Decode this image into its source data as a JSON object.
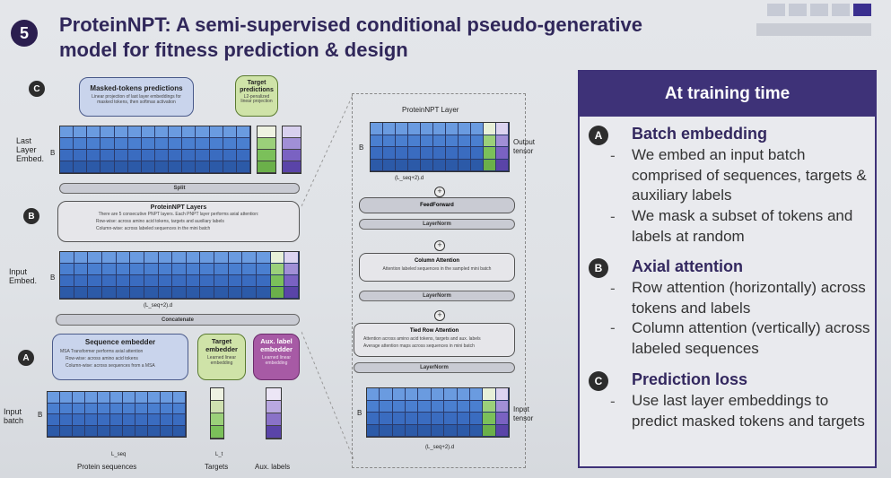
{
  "slide": {
    "number": "5",
    "title_line1": "ProteinNPT: A semi-supervised conditional pseudo-generative",
    "title_line2": "model for fitness prediction & design"
  },
  "panel": {
    "header": "At training time",
    "sections": [
      {
        "badge": "A",
        "title": "Batch embedding",
        "bullets": [
          "We embed an input batch comprised of sequences, targets & auxiliary labels",
          "We mask a subset of tokens and labels at random"
        ]
      },
      {
        "badge": "B",
        "title": "Axial attention",
        "bullets": [
          "Row attention (horizontally) across tokens and labels",
          "Column attention (vertically) across labeled sequences"
        ]
      },
      {
        "badge": "C",
        "title": "Prediction loss",
        "bullets": [
          "Use last layer embeddings to predict masked tokens and targets"
        ]
      }
    ]
  },
  "diagram": {
    "badge_c": "C",
    "badge_b": "B",
    "badge_a": "A",
    "masked_title": "Masked-tokens predictions",
    "masked_desc": "Linear projection of last layer embeddings for masked tokens, then softmax activation",
    "target_pred_title": "Target predictions",
    "target_pred_desc": "L2-penalized linear projection",
    "last_layer_label": "Last Layer Embed.",
    "split": "Split",
    "layers_title": "ProteinNPT Layers",
    "layers_desc": "There are 5 consecutive PNPT layers. Each PNPT layer performs axial attention:",
    "layers_row": "Row-wise: across amino acid tokens, targets and auxiliary labels",
    "layers_col": "Column-wise: across labeled sequences in the mini batch",
    "input_embed_label": "Input Embed.",
    "dim_label": "(L_seq+2).d",
    "concatenate": "Concatenate",
    "seq_embedder_title": "Sequence embedder",
    "seq_embedder_desc": "MSA Transformer performs axial attention",
    "seq_row": "Row-wise: across amino acid tokens",
    "seq_col": "Column-wise: across sequences from a MSA",
    "target_embedder_title": "Target embedder",
    "target_embedder_desc": "Learned linear embedding",
    "aux_embedder_title": "Aux. label embedder",
    "aux_embedder_desc": "Learned linear embedding",
    "input_batch_label": "Input batch",
    "protein_sequences": "Protein sequences",
    "targets": "Targets",
    "aux_labels": "Aux. labels",
    "B_label": "B",
    "d_label": "d",
    "Lseq": "L_seq",
    "Lt": "L_t",
    "layer_title": "ProteinNPT Layer",
    "output_tensor": "Output tensor",
    "feedforward": "FeedForward",
    "layernorm": "LayerNorm",
    "column_attention": "Column Attention",
    "column_attention_desc": "Attention labeled sequences in the sampled mini batch",
    "tied_row_attention": "Tied Row Attention",
    "tied_row_desc1": "Attention across amino acid tokens, targets and aux. labels",
    "tied_row_desc2": "Average attention maps across sequences in mini batch",
    "input_tensor": "Input tensor"
  }
}
